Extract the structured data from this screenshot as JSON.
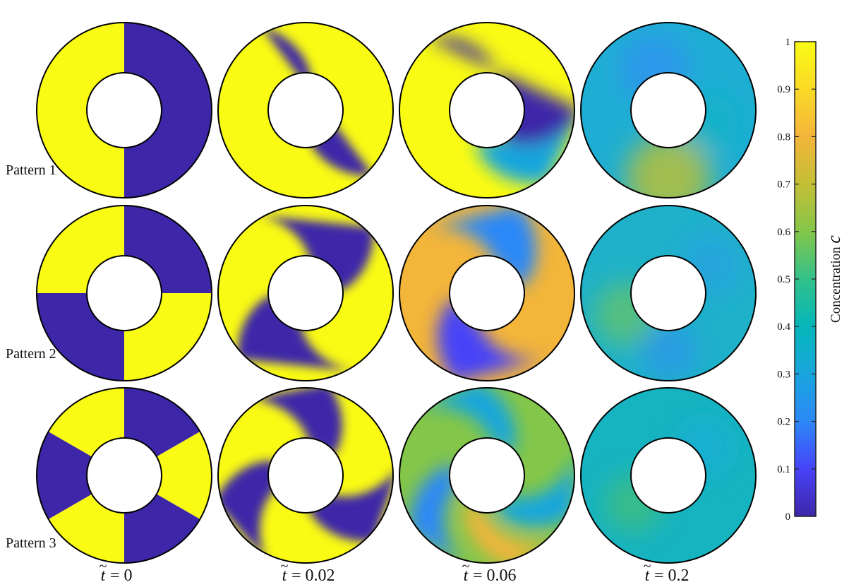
{
  "rows": [
    {
      "label": "Pattern 1"
    },
    {
      "label": "Pattern 2"
    },
    {
      "label": "Pattern 3"
    }
  ],
  "columns": [
    {
      "t_symbol": "t",
      "t_value": "= 0"
    },
    {
      "t_symbol": "t",
      "t_value": "= 0.02"
    },
    {
      "t_symbol": "t",
      "t_value": "= 0.06"
    },
    {
      "t_symbol": "t",
      "t_value": "= 0.2"
    }
  ],
  "colorbar": {
    "label": "Concentration",
    "symbol": "c",
    "ticks": [
      "0",
      "0.1",
      "0.2",
      "0.3",
      "0.4",
      "0.5",
      "0.6",
      "0.7",
      "0.8",
      "0.9",
      "1"
    ],
    "colormap": "parula",
    "stops": [
      "#3e26a8",
      "#4743f8",
      "#2c88f7",
      "#19a6dd",
      "#05b6ba",
      "#32c18a",
      "#84c649",
      "#c4bf36",
      "#f3b53a",
      "#fada27",
      "#f9fb14"
    ]
  }
}
